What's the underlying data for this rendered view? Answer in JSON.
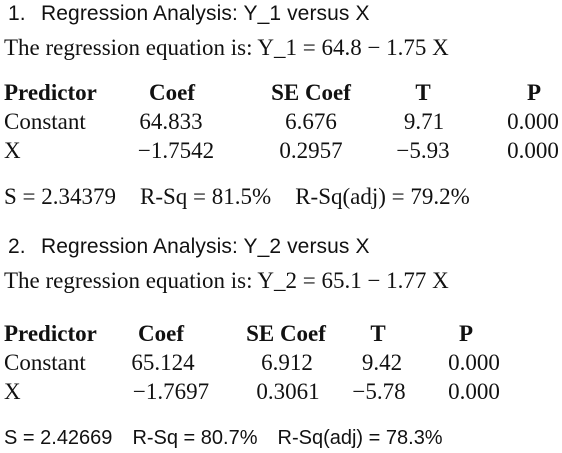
{
  "sections": [
    {
      "number": "1.",
      "title": "Regression Analysis: Y_1 versus X",
      "equation": "The regression equation is: Y_1 = 64.8 − 1.75 X",
      "table": {
        "headers": [
          "Predictor",
          "Coef",
          "SE Coef",
          "T",
          "P"
        ],
        "rows": [
          [
            "Constant",
            "64.833",
            "6.676",
            "9.71",
            "0.000"
          ],
          [
            "X",
            "−1.7542",
            "0.2957",
            "−5.93",
            "0.000"
          ]
        ]
      },
      "summary": {
        "s": "S = 2.34379",
        "rsq": "R-Sq = 81.5%",
        "rsq_adj": "R-Sq(adj) = 79.2%"
      }
    },
    {
      "number": "2.",
      "title": "Regression Analysis: Y_2 versus X",
      "equation": "The regression equation is: Y_2 = 65.1 − 1.77 X",
      "table": {
        "headers": [
          "Predictor",
          "Coef",
          "SE Coef",
          "T",
          "P"
        ],
        "rows": [
          [
            "Constant",
            "65.124",
            "6.912",
            "9.42",
            "0.000"
          ],
          [
            "X",
            "−1.7697",
            "0.3061",
            "−5.78",
            "0.000"
          ]
        ]
      },
      "summary": {
        "s": "S = 2.42669",
        "rsq": "R-Sq = 80.7%",
        "rsq_adj": "R-Sq(adj) = 78.3%"
      }
    }
  ]
}
